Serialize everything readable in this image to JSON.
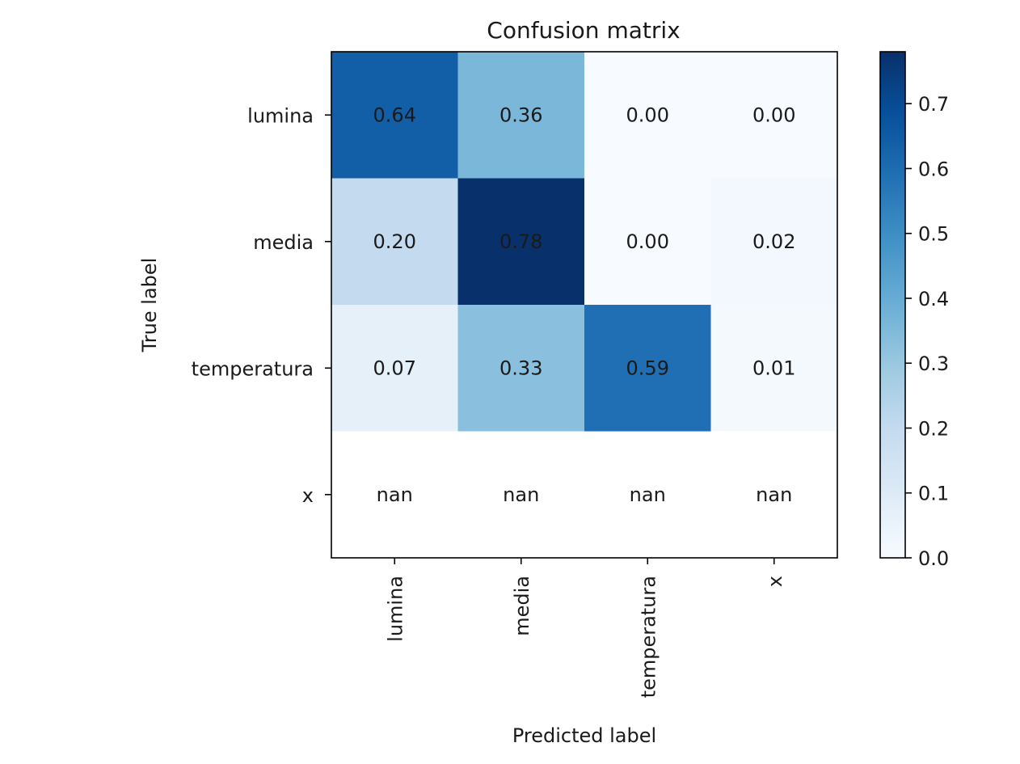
{
  "chart_data": {
    "type": "heatmap",
    "title": "Confusion matrix",
    "xlabel": "Predicted label",
    "ylabel": "True label",
    "x_categories": [
      "lumina",
      "media",
      "temperatura",
      "x"
    ],
    "y_categories": [
      "lumina",
      "media",
      "temperatura",
      "x"
    ],
    "values": [
      [
        0.64,
        0.36,
        0.0,
        0.0
      ],
      [
        0.2,
        0.78,
        0.0,
        0.02
      ],
      [
        0.07,
        0.33,
        0.59,
        0.01
      ],
      [
        null,
        null,
        null,
        null
      ]
    ],
    "cell_labels": [
      [
        "0.64",
        "0.36",
        "0.00",
        "0.00"
      ],
      [
        "0.20",
        "0.78",
        "0.00",
        "0.02"
      ],
      [
        "0.07",
        "0.33",
        "0.59",
        "0.01"
      ],
      [
        "nan",
        "nan",
        "nan",
        "nan"
      ]
    ],
    "colormap": "Blues",
    "colormap_stops": [
      "#f7fbff",
      "#deebf7",
      "#c6dbef",
      "#9ecae1",
      "#6baed6",
      "#4292c6",
      "#2171b5",
      "#08519c",
      "#08306b"
    ],
    "color_range": [
      0.0,
      0.78
    ],
    "nan_color": "#ffffff",
    "colorbar": {
      "ticks": [
        "0.0",
        "0.1",
        "0.2",
        "0.3",
        "0.4",
        "0.5",
        "0.6",
        "0.7"
      ],
      "tick_values": [
        0.0,
        0.1,
        0.2,
        0.3,
        0.4,
        0.5,
        0.6,
        0.7
      ]
    },
    "grid": false
  }
}
